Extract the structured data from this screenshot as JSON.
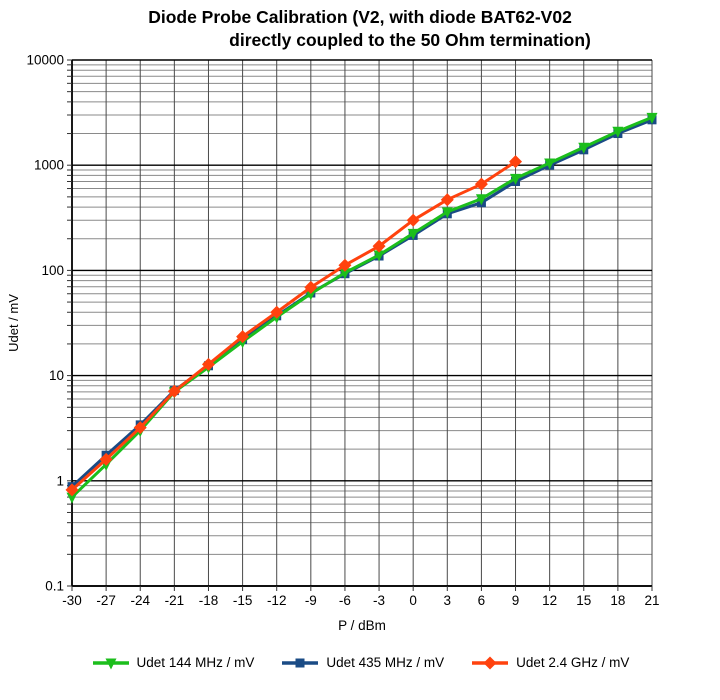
{
  "title": {
    "line1": "Diode Probe Calibration (V2, with diode BAT62-V02",
    "line2": "directly coupled to the 50 Ohm termination)"
  },
  "chart_data": {
    "type": "line",
    "title": "Diode Probe Calibration (V2, with diode BAT62-V02 directly coupled to the 50 Ohm termination)",
    "xlabel": "P / dBm",
    "ylabel": "Udet / mV",
    "x_scale": "linear",
    "y_scale": "log",
    "x_range": [
      -30,
      21
    ],
    "y_range": [
      0.1,
      10000
    ],
    "x_ticks": [
      -30,
      -27,
      -24,
      -21,
      -18,
      -15,
      -12,
      -9,
      -6,
      -3,
      0,
      3,
      6,
      9,
      12,
      15,
      18,
      21
    ],
    "y_tick_labels": [
      "0.1",
      "1",
      "10",
      "100",
      "1000",
      "10000"
    ],
    "grid": {
      "major_horizontal": true,
      "minor_horizontal": true,
      "vertical": true
    },
    "legend_position": "bottom",
    "series": [
      {
        "name": "Udet 144 MHz / mV",
        "marker": "triangle-down",
        "color": "#1CBE1C",
        "draw_order": 2,
        "x": [
          -30,
          -27,
          -24,
          -21,
          -18,
          -15,
          -12,
          -9,
          -6,
          -3,
          0,
          3,
          6,
          9,
          12,
          15,
          18,
          21
        ],
        "values": [
          0.7,
          1.43,
          3.0,
          7.0,
          12,
          21,
          36,
          60,
          95,
          140,
          225,
          360,
          480,
          750,
          1050,
          1480,
          2100,
          2850
        ]
      },
      {
        "name": "Udet 435 MHz / mV",
        "marker": "square",
        "color": "#1A4B85",
        "draw_order": 1,
        "x": [
          -30,
          -27,
          -24,
          -21,
          -18,
          -15,
          -12,
          -9,
          -6,
          -3,
          0,
          3,
          6,
          9,
          12,
          15,
          18,
          21
        ],
        "values": [
          0.88,
          1.75,
          3.4,
          7.2,
          12.4,
          22,
          37,
          61,
          93,
          137,
          215,
          345,
          440,
          700,
          1000,
          1400,
          2000,
          2700
        ]
      },
      {
        "name": "Udet 2.4 GHz / mV",
        "marker": "diamond",
        "color": "#FF420E",
        "draw_order": 3,
        "x": [
          -30,
          -27,
          -24,
          -21,
          -18,
          -15,
          -12,
          -9,
          -6,
          -3,
          0,
          3,
          6,
          9
        ],
        "values": [
          0.82,
          1.6,
          3.2,
          7.1,
          12.8,
          23.5,
          40,
          69,
          112,
          170,
          300,
          470,
          660,
          1080
        ]
      }
    ],
    "colors": {
      "major_grid": "#000000",
      "minor_grid": "#8a8a8a",
      "vertical_grid": "#4a4a4a",
      "axis": "#000000",
      "text": "#000000",
      "background": "#ffffff"
    }
  }
}
